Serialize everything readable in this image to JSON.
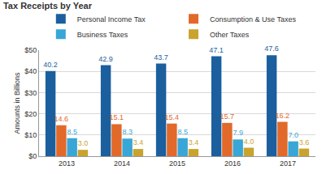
{
  "chart_data": {
    "type": "bar",
    "title": "Tax Receipts by Year",
    "y_label": "Amounts in Billions",
    "categories": [
      "2013",
      "2014",
      "2015",
      "2016",
      "2017"
    ],
    "series": [
      {
        "name": "Personal Income Tax",
        "color": "#1b5f9e",
        "values": [
          40.2,
          42.9,
          43.7,
          47.1,
          47.6
        ],
        "value_labels": [
          "40.2",
          "42.9",
          "43.7",
          "47.1",
          "47.6"
        ]
      },
      {
        "name": "Consumption & Use Taxes",
        "color": "#e2692a",
        "values": [
          14.6,
          15.1,
          15.4,
          15.7,
          16.2
        ],
        "value_labels": [
          "14.6",
          "15.1",
          "15.4",
          "15.7",
          "16.2"
        ]
      },
      {
        "name": "Business Taxes",
        "color": "#38a6d6",
        "values": [
          8.5,
          8.3,
          8.5,
          7.9,
          7.0
        ],
        "value_labels": [
          "8.5",
          "8.3",
          "8.5",
          "7.9",
          "7.0"
        ]
      },
      {
        "name": "Other Taxes",
        "color": "#c9a32e",
        "values": [
          3.0,
          3.4,
          3.4,
          4.0,
          3.6
        ],
        "value_labels": [
          "3.0",
          "3.4",
          "3.4",
          "4.0",
          "3.6"
        ]
      }
    ],
    "ylim": [
      0,
      50
    ],
    "yticks": [
      {
        "value": 0,
        "label": "$0"
      },
      {
        "value": 10,
        "label": "$10"
      },
      {
        "value": 20,
        "label": "$20"
      },
      {
        "value": 30,
        "label": "$30"
      },
      {
        "value": 40,
        "label": "$40"
      },
      {
        "value": 50,
        "label": "$50"
      }
    ],
    "grid": true,
    "legend": "top",
    "data_labels": true
  }
}
